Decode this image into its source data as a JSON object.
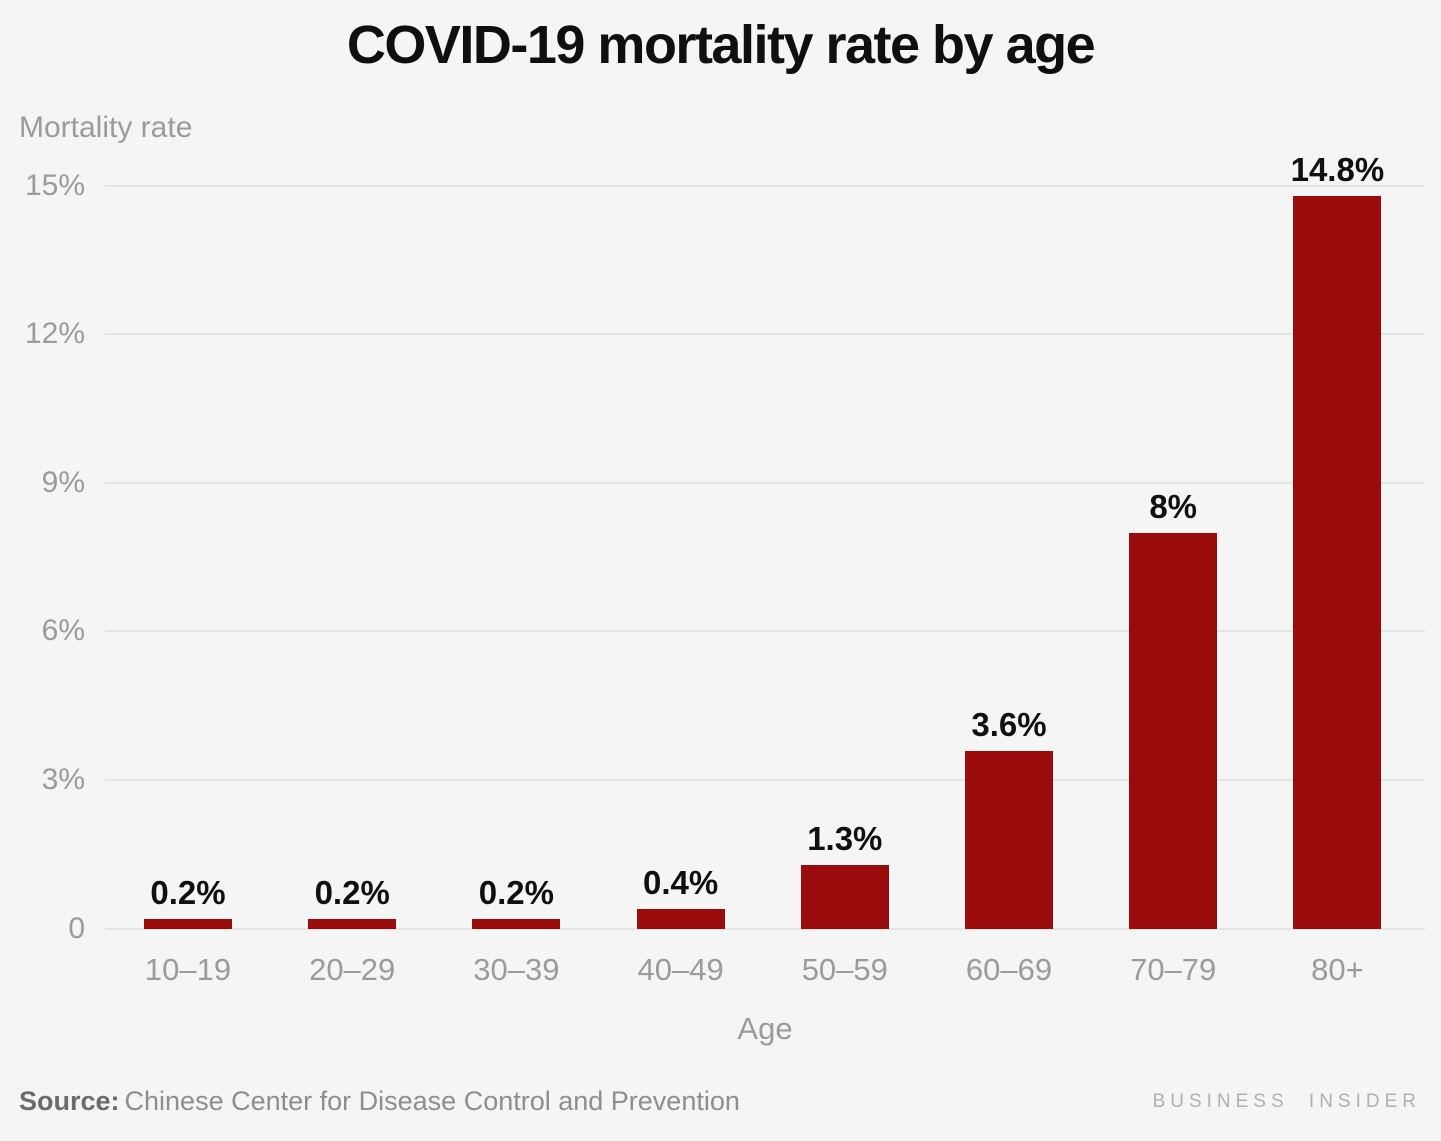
{
  "title": "COVID-19 mortality rate by age",
  "chart_data": {
    "type": "bar",
    "title": "COVID-19 mortality rate by age",
    "ylabel": "Mortality rate",
    "xlabel": "Age",
    "categories": [
      "10–19",
      "20–29",
      "30–39",
      "40–49",
      "50–59",
      "60–69",
      "70–79",
      "80+"
    ],
    "values": [
      0.2,
      0.2,
      0.2,
      0.4,
      1.3,
      3.6,
      8,
      14.8
    ],
    "value_labels": [
      "0.2%",
      "0.2%",
      "0.2%",
      "0.4%",
      "1.3%",
      "3.6%",
      "8%",
      "14.8%"
    ],
    "ylim": [
      0,
      15
    ],
    "yticks": [
      {
        "value": 15,
        "label": "15%"
      },
      {
        "value": 12,
        "label": "12%"
      },
      {
        "value": 9,
        "label": "9%"
      },
      {
        "value": 6,
        "label": "6%"
      },
      {
        "value": 3,
        "label": "3%"
      },
      {
        "value": 0,
        "label": "0"
      }
    ],
    "grid": "horizontal",
    "legend": "none"
  },
  "footer": {
    "source_prefix": "Source:",
    "source_text": "Chinese Center for Disease Control and Prevention",
    "brand": "BUSINESS INSIDER"
  },
  "colors": {
    "background": "#f5f5f5",
    "bar": "#990c0b",
    "gridline": "#e4e4e4",
    "axis_text": "#9b9b9b",
    "title_text": "#0f0f0f",
    "value_text": "#101010",
    "source_prefix_text": "#6b6b6b",
    "source_text": "#8e8e8e",
    "brand_text": "#b0b0b0"
  }
}
